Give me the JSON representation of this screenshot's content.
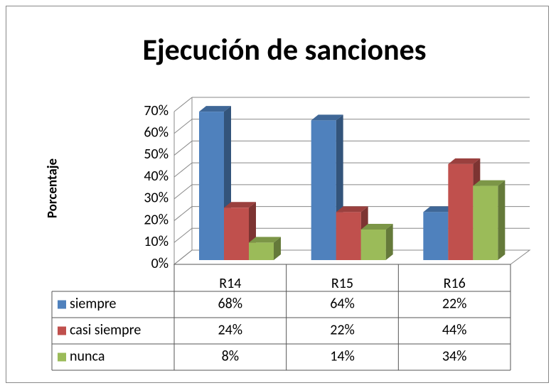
{
  "chart_data": {
    "type": "bar3d",
    "title": "Ejecución de sanciones",
    "y_label": "Porcentaje",
    "categories": [
      "R14",
      "R15",
      "R16"
    ],
    "series": [
      {
        "name": "siempre",
        "color": "#4f81bd",
        "values": [
          68,
          64,
          22
        ],
        "value_labels": [
          "68%",
          "64%",
          "22%"
        ]
      },
      {
        "name": "casi siempre",
        "color": "#c0504d",
        "values": [
          24,
          22,
          44
        ],
        "value_labels": [
          "24%",
          "22%",
          "44%"
        ]
      },
      {
        "name": "nunca",
        "color": "#9bbb59",
        "values": [
          8,
          14,
          34
        ],
        "value_labels": [
          "8%",
          "14%",
          "34%"
        ]
      }
    ],
    "ylim": [
      0,
      70
    ],
    "yticks": [
      {
        "value": 0,
        "label": "0%"
      },
      {
        "value": 10,
        "label": "10%"
      },
      {
        "value": 20,
        "label": "20%"
      },
      {
        "value": 30,
        "label": "30%"
      },
      {
        "value": 40,
        "label": "40%"
      },
      {
        "value": 50,
        "label": "50%"
      },
      {
        "value": 60,
        "label": "60%"
      },
      {
        "value": 70,
        "label": "70%"
      }
    ],
    "grid": true
  }
}
